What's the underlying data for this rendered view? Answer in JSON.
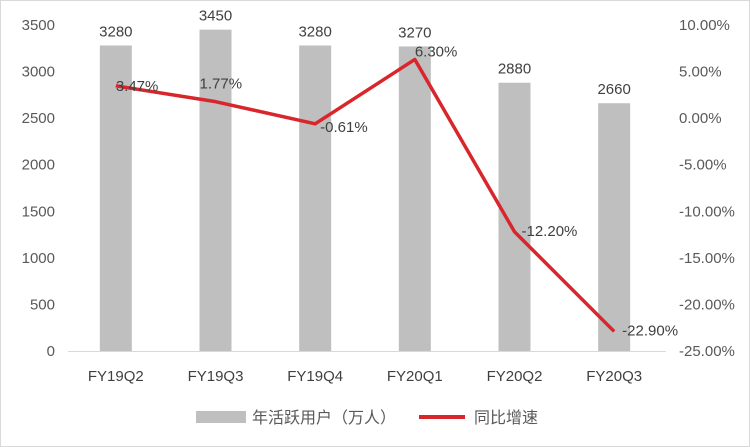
{
  "chart_data": {
    "type": "bar",
    "categories": [
      "FY19Q2",
      "FY19Q3",
      "FY19Q4",
      "FY20Q1",
      "FY20Q2",
      "FY20Q3"
    ],
    "series": [
      {
        "name": "年活跃用户（万人）",
        "type": "bar",
        "axis": "left",
        "values": [
          3280,
          3450,
          3280,
          3270,
          2880,
          2660
        ],
        "labels": [
          "3280",
          "3450",
          "3280",
          "3270",
          "2880",
          "2660"
        ],
        "color": "#bfbfbf"
      },
      {
        "name": "同比增速",
        "type": "line",
        "axis": "right",
        "values": [
          3.47,
          1.77,
          -0.61,
          6.3,
          -12.2,
          -22.9
        ],
        "labels": [
          "3.47%",
          "1.77%",
          "-0.61%",
          "6.30%",
          "-12.20%",
          "-22.90%"
        ],
        "color": "#d9262b"
      }
    ],
    "y_left": {
      "min": 0,
      "max": 3500,
      "ticks": [
        0,
        500,
        1000,
        1500,
        2000,
        2500,
        3000,
        3500
      ],
      "tick_labels": [
        "0",
        "500",
        "1000",
        "1500",
        "2000",
        "2500",
        "3000",
        "3500"
      ]
    },
    "y_right": {
      "min": -25,
      "max": 10,
      "ticks": [
        10,
        5,
        0,
        -5,
        -10,
        -15,
        -20,
        -25
      ],
      "tick_labels": [
        "10.00%",
        "5.00%",
        "0.00%",
        "-5.00%",
        "-10.00%",
        "-15.00%",
        "-20.00%",
        "-25.00%"
      ]
    },
    "grid": false,
    "legend_position": "bottom"
  }
}
